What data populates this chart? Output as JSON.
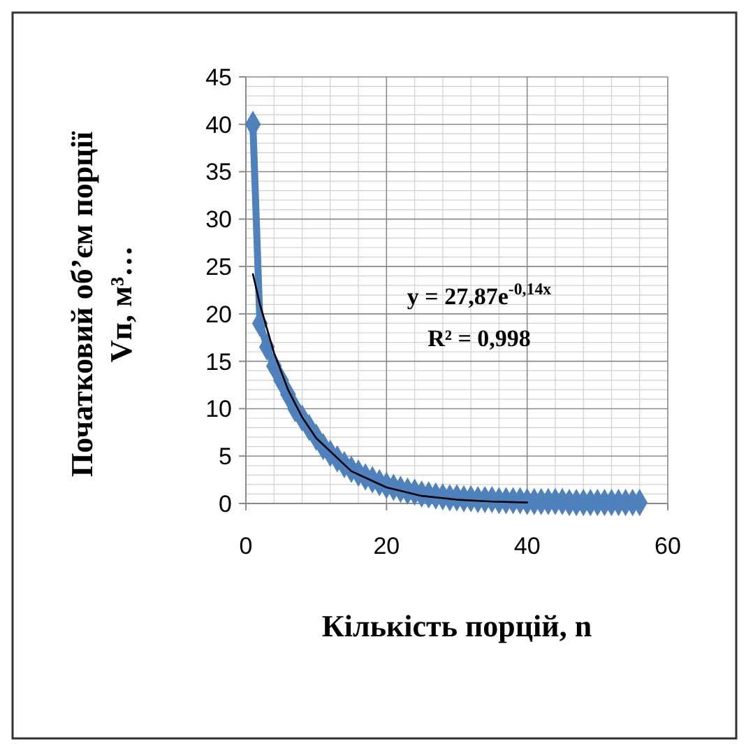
{
  "chart_data": {
    "type": "line",
    "xlabel": "Кількість порцій, n",
    "ylabel": "Початковий об’єм порції Vп, м³…",
    "xlim": [
      0,
      60
    ],
    "xticks": [
      0,
      20,
      40,
      60
    ],
    "ylim": [
      0,
      45
    ],
    "yticks": [
      0,
      5,
      10,
      15,
      20,
      25,
      30,
      35,
      40,
      45
    ],
    "grid": true,
    "annotations": [
      "y = 27,87e$^{-0,14x}$",
      "R² = 0,998"
    ],
    "series": [
      {
        "color": "#4f81bd",
        "marker": "diamond",
        "x": [
          1,
          2,
          3,
          4,
          5,
          6,
          7,
          8,
          9,
          10,
          11,
          12,
          13,
          14,
          15,
          16,
          17,
          18,
          19,
          20,
          21,
          22,
          23,
          24,
          25,
          26,
          27,
          28,
          29,
          30,
          31,
          32,
          33,
          34,
          35,
          36,
          37,
          38,
          39,
          40,
          41,
          42,
          43,
          44,
          45,
          46,
          47,
          48,
          49,
          50,
          51,
          52,
          53,
          54,
          55,
          56
        ],
        "values": [
          40,
          19,
          16.5,
          14.5,
          13,
          11.5,
          10,
          9,
          8,
          7,
          6,
          5.3,
          4.7,
          4.1,
          3.6,
          3.2,
          2.8,
          2.5,
          2.2,
          1.9,
          1.7,
          1.5,
          1.3,
          1.2,
          1,
          0.9,
          0.8,
          0.7,
          0.6,
          0.6,
          0.5,
          0.5,
          0.4,
          0.4,
          0.4,
          0.3,
          0.3,
          0.3,
          0.3,
          0.2,
          0.2,
          0.2,
          0.2,
          0.2,
          0.2,
          0.1,
          0.1,
          0.1,
          0.1,
          0.1,
          0.1,
          0.1,
          0.1,
          0.1,
          0.1,
          0.1
        ]
      },
      {
        "color": "#000000",
        "marker": "none",
        "x": [
          1,
          2,
          4,
          6,
          8,
          10,
          15,
          20,
          25,
          30,
          35,
          40
        ],
        "values": [
          24.2,
          21,
          15.9,
          12,
          9.1,
          6.9,
          3.4,
          1.7,
          0.8,
          0.4,
          0.2,
          0.1
        ]
      }
    ]
  }
}
